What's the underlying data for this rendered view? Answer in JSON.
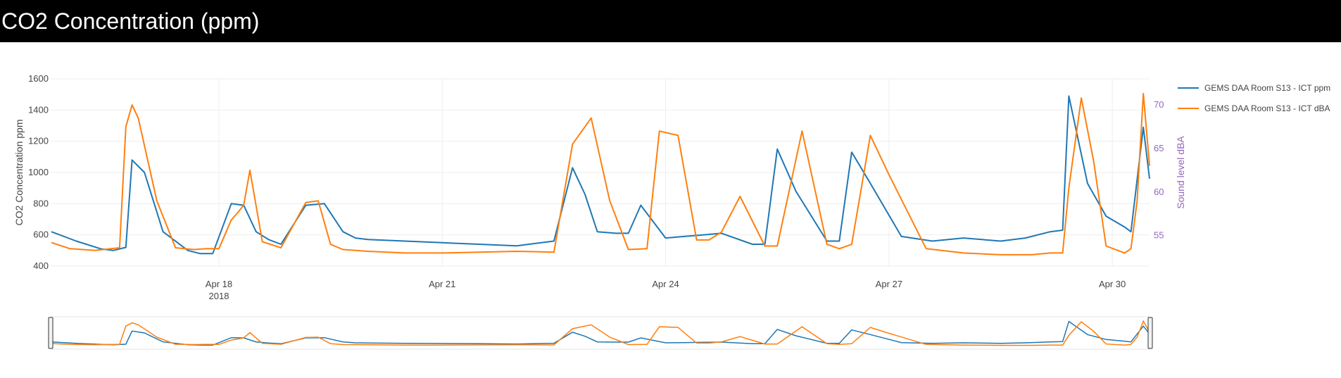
{
  "header": {
    "title": "CO2 Concentration (ppm)"
  },
  "colors": {
    "series_ppm": "#1f77b4",
    "series_dba": "#ff7f0e",
    "right_axis": "#9467bd",
    "header_bg": "#000000"
  },
  "chart_data": {
    "type": "line",
    "x_range": [
      "2018-04-15T18:00",
      "2018-04-30T12:00"
    ],
    "x_ticks": [
      {
        "value": "2018-04-18",
        "label": "Apr 18",
        "sublabel": "2018"
      },
      {
        "value": "2018-04-21",
        "label": "Apr 21",
        "sublabel": ""
      },
      {
        "value": "2018-04-24",
        "label": "Apr 24",
        "sublabel": ""
      },
      {
        "value": "2018-04-27",
        "label": "Apr 27",
        "sublabel": ""
      },
      {
        "value": "2018-04-30",
        "label": "Apr 30",
        "sublabel": ""
      }
    ],
    "y_left": {
      "title": "CO2 Concentration ppm",
      "range": [
        400,
        1600
      ],
      "ticks": [
        400,
        600,
        800,
        1000,
        1200,
        1400,
        1600
      ]
    },
    "y_right": {
      "title": "Sound level dBA",
      "range": [
        51.5,
        73
      ],
      "ticks": [
        55,
        60,
        65,
        70
      ]
    },
    "grid": true,
    "legend_position": "top-right",
    "range_slider": true,
    "series": [
      {
        "name": "GEMS DAA Room S13 - ICT ppm",
        "axis": "left",
        "x": [
          "2018-04-15T18:00",
          "2018-04-16T02:00",
          "2018-04-16T10:00",
          "2018-04-16T14:00",
          "2018-04-16T18:00",
          "2018-04-16T20:00",
          "2018-04-17T00:00",
          "2018-04-17T06:00",
          "2018-04-17T14:00",
          "2018-04-17T18:00",
          "2018-04-17T22:00",
          "2018-04-18T04:00",
          "2018-04-18T08:00",
          "2018-04-18T12:00",
          "2018-04-18T16:00",
          "2018-04-18T20:00",
          "2018-04-19T04:00",
          "2018-04-19T10:00",
          "2018-04-19T16:00",
          "2018-04-19T20:00",
          "2018-04-20T00:00",
          "2018-04-20T12:00",
          "2018-04-21T00:00",
          "2018-04-21T12:00",
          "2018-04-22T00:00",
          "2018-04-22T12:00",
          "2018-04-22T18:00",
          "2018-04-22T22:00",
          "2018-04-23T02:00",
          "2018-04-23T08:00",
          "2018-04-23T12:00",
          "2018-04-23T16:00",
          "2018-04-24T00:00",
          "2018-04-24T06:00",
          "2018-04-24T12:00",
          "2018-04-24T18:00",
          "2018-04-25T04:00",
          "2018-04-25T08:00",
          "2018-04-25T12:00",
          "2018-04-25T18:00",
          "2018-04-26T04:00",
          "2018-04-26T08:00",
          "2018-04-26T12:00",
          "2018-04-26T18:00",
          "2018-04-27T04:00",
          "2018-04-27T14:00",
          "2018-04-28T00:00",
          "2018-04-28T12:00",
          "2018-04-28T20:00",
          "2018-04-29T04:00",
          "2018-04-29T08:00",
          "2018-04-29T10:00",
          "2018-04-29T16:00",
          "2018-04-29T22:00",
          "2018-04-30T04:00",
          "2018-04-30T06:00",
          "2018-04-30T10:00",
          "2018-04-30T12:00"
        ],
        "y": [
          620,
          560,
          510,
          500,
          520,
          1080,
          1000,
          620,
          500,
          480,
          480,
          800,
          790,
          620,
          570,
          540,
          790,
          800,
          620,
          580,
          570,
          560,
          550,
          540,
          530,
          560,
          1030,
          860,
          620,
          610,
          610,
          790,
          580,
          590,
          600,
          610,
          540,
          540,
          1150,
          880,
          560,
          560,
          1130,
          930,
          590,
          560,
          580,
          560,
          580,
          620,
          630,
          1490,
          930,
          720,
          650,
          620,
          1290,
          960
        ]
      },
      {
        "name": "GEMS DAA Room S13 - ICT dBA",
        "axis": "right",
        "x": [
          "2018-04-15T18:00",
          "2018-04-16T00:00",
          "2018-04-16T08:00",
          "2018-04-16T16:00",
          "2018-04-16T18:00",
          "2018-04-16T20:00",
          "2018-04-16T22:00",
          "2018-04-17T04:00",
          "2018-04-17T10:00",
          "2018-04-17T16:00",
          "2018-04-17T20:00",
          "2018-04-18T00:00",
          "2018-04-18T04:00",
          "2018-04-18T06:00",
          "2018-04-18T08:00",
          "2018-04-18T10:00",
          "2018-04-18T14:00",
          "2018-04-18T20:00",
          "2018-04-19T04:00",
          "2018-04-19T08:00",
          "2018-04-19T12:00",
          "2018-04-19T16:00",
          "2018-04-20T00:00",
          "2018-04-20T12:00",
          "2018-04-21T00:00",
          "2018-04-21T12:00",
          "2018-04-22T00:00",
          "2018-04-22T12:00",
          "2018-04-22T18:00",
          "2018-04-23T00:00",
          "2018-04-23T06:00",
          "2018-04-23T12:00",
          "2018-04-23T18:00",
          "2018-04-23T22:00",
          "2018-04-24T04:00",
          "2018-04-24T10:00",
          "2018-04-24T14:00",
          "2018-04-24T18:00",
          "2018-04-25T00:00",
          "2018-04-25T08:00",
          "2018-04-25T12:00",
          "2018-04-25T20:00",
          "2018-04-26T04:00",
          "2018-04-26T08:00",
          "2018-04-26T12:00",
          "2018-04-26T18:00",
          "2018-04-27T00:00",
          "2018-04-27T12:00",
          "2018-04-28T00:00",
          "2018-04-28T12:00",
          "2018-04-28T22:00",
          "2018-04-29T04:00",
          "2018-04-29T08:00",
          "2018-04-29T10:00",
          "2018-04-29T14:00",
          "2018-04-29T18:00",
          "2018-04-29T22:00",
          "2018-04-30T04:00",
          "2018-04-30T06:00",
          "2018-04-30T08:00",
          "2018-04-30T10:00",
          "2018-04-30T12:00"
        ],
        "y": [
          54.2,
          53.5,
          53.3,
          53.6,
          67.5,
          70.0,
          68.5,
          59.0,
          53.6,
          53.4,
          53.5,
          53.5,
          56.8,
          57.6,
          58.5,
          62.5,
          54.3,
          53.6,
          58.8,
          59.0,
          54.0,
          53.4,
          53.2,
          53.0,
          53.0,
          53.1,
          53.2,
          53.1,
          65.5,
          68.5,
          59.0,
          53.4,
          53.5,
          67.0,
          66.5,
          54.5,
          54.5,
          55.4,
          59.5,
          53.8,
          53.8,
          67.0,
          54.0,
          53.5,
          54.0,
          66.5,
          62.0,
          53.5,
          53.0,
          52.8,
          52.8,
          53.0,
          53.0,
          60.5,
          70.8,
          63.5,
          53.8,
          53.0,
          53.5,
          59.0,
          71.3,
          63.0
        ]
      }
    ]
  }
}
